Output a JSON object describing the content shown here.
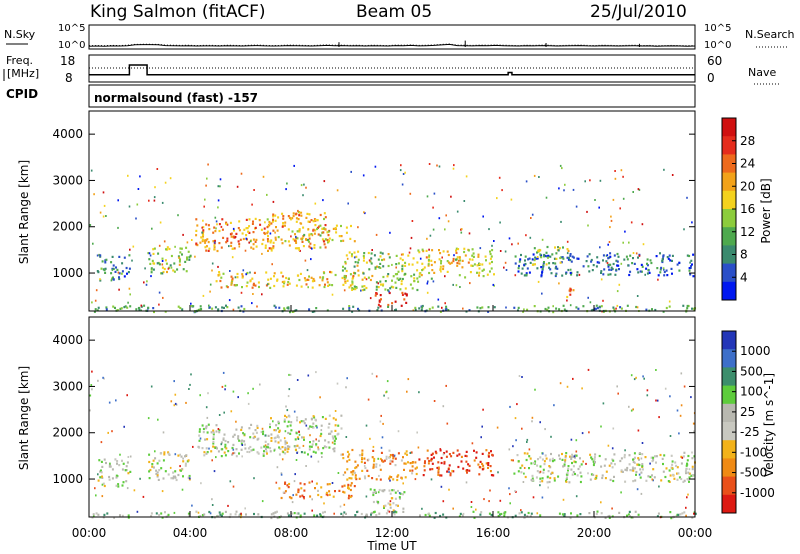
{
  "header": {
    "station": "King Salmon (fitACF)",
    "beam": "Beam 05",
    "date": "25/Jul/2010"
  },
  "colors": {
    "power_scale": [
      "#0018f0",
      "#2a4fc8",
      "#3a8a6e",
      "#4ea94e",
      "#8ccc3c",
      "#f4d21e",
      "#f2a21a",
      "#ee6a1c",
      "#e52c1c",
      "#d01010"
    ],
    "velocity_scale": [
      "#2336b8",
      "#3d6fc9",
      "#3c8e6c",
      "#5ecc3c",
      "#b8b8b0",
      "#c8c8c0",
      "#f2b21a",
      "#ef8a14",
      "#e9501a",
      "#dd1a12"
    ],
    "ground_scatter": "#c0c0b8"
  },
  "chart_data": [
    {
      "type": "line",
      "id": "nsky-nsearch",
      "left_labels": [
        "N.Sky"
      ],
      "right_labels": [
        "N.Search"
      ],
      "y_ticks_left": [
        "10^5",
        "10^0"
      ],
      "y_ticks_right": [
        "10^5",
        "10^0"
      ],
      "series": [
        {
          "style": "solid",
          "values": [
            0.5,
            0.6,
            0.5,
            0.7,
            0.6,
            0.8,
            1.4,
            1.5,
            1.5,
            1.4,
            0.9,
            0.8,
            0.7,
            0.8,
            0.6,
            0.7,
            0.7,
            0.6,
            0.8,
            0.7,
            0.6,
            0.8,
            0.9,
            0.7,
            0.6,
            0.7,
            0.9,
            0.8,
            0.7,
            0.6,
            0.8,
            1.0,
            0.8,
            0.9,
            0.7,
            0.8,
            0.6,
            0.8,
            0.7,
            0.6,
            0.9,
            0.8,
            1.0,
            0.7,
            0.8,
            1.0,
            1.3,
            1.6,
            0.9,
            0.8,
            0.7,
            0.9,
            0.8,
            1.0,
            0.8,
            0.7,
            0.6,
            0.8,
            0.7,
            0.9,
            0.8,
            0.6,
            0.7,
            0.8,
            0.9,
            0.7,
            0.6,
            0.8,
            0.7,
            0.6,
            0.7,
            0.8,
            0.6,
            0.7,
            0.5,
            0.6,
            0.7,
            0.6,
            0.5,
            0.6
          ]
        },
        {
          "style": "dotted",
          "values": [
            0.8,
            0.9,
            0.8,
            1.0,
            0.9,
            1.1,
            1.6,
            1.7,
            1.7,
            1.6,
            1.2,
            1.1,
            1.0,
            1.1,
            0.9,
            1.0,
            1.0,
            0.9,
            1.1,
            1.0,
            0.9,
            1.1,
            1.2,
            1.0,
            0.9,
            1.0,
            1.2,
            1.1,
            1.0,
            0.9,
            1.1,
            1.3,
            1.1,
            1.2,
            1.0,
            1.1,
            0.9,
            1.1,
            1.0,
            0.9,
            1.2,
            1.1,
            1.3,
            1.0,
            1.1,
            1.3,
            1.6,
            1.9,
            1.2,
            1.1,
            1.0,
            1.2,
            1.1,
            1.3,
            1.1,
            1.0,
            0.9,
            1.1,
            1.0,
            1.2,
            1.1,
            0.9,
            1.0,
            1.1,
            1.2,
            1.0,
            0.9,
            1.1,
            1.0,
            0.9,
            1.0,
            1.1,
            0.9,
            1.0,
            0.8,
            0.9,
            1.0,
            0.9,
            0.8,
            0.9
          ]
        }
      ],
      "spikes": [
        [
          9.9,
          3.0
        ],
        [
          14.9,
          4.0
        ],
        [
          18.1,
          2.5
        ],
        [
          21.8,
          2.0
        ]
      ]
    },
    {
      "type": "line",
      "id": "freq-nave",
      "left_labels": [
        "Freq.",
        "[MHz]",
        "CPID"
      ],
      "right_labels": [
        "Nave"
      ],
      "y_ticks_left": [
        "18",
        "8"
      ],
      "y_ticks_right": [
        "60",
        "0"
      ],
      "freq_steps": [
        [
          0,
          1.6,
          11.5
        ],
        [
          1.6,
          2.3,
          18
        ],
        [
          2.3,
          16.6,
          11.5
        ],
        [
          16.6,
          16.75,
          13
        ],
        [
          16.75,
          24,
          11.5
        ]
      ],
      "nave_level": 22,
      "cpid_label": "normalsound (fast) -157"
    },
    {
      "type": "heatmap",
      "id": "power",
      "ylabel": "Slant Range [km]",
      "ylim": [
        180,
        4500
      ],
      "y_ticks": [
        "1000",
        "2000",
        "3000",
        "4000"
      ],
      "colorbar_label": "Power [dB]",
      "colorbar_ticks": [
        "4",
        "8",
        "12",
        "16",
        "20",
        "24",
        "28"
      ],
      "bands": [
        {
          "t0": 0.3,
          "t1": 1.6,
          "r0": 850,
          "r1": 1450,
          "val": 0.25
        },
        {
          "t0": 2.3,
          "t1": 4.0,
          "r0": 1000,
          "r1": 1600,
          "val": 0.45
        },
        {
          "t0": 4.2,
          "t1": 7.2,
          "r0": 1500,
          "r1": 2200,
          "val": 0.7
        },
        {
          "t0": 7.0,
          "t1": 9.5,
          "r0": 1550,
          "r1": 2350,
          "val": 0.65
        },
        {
          "t0": 5.0,
          "t1": 10.5,
          "r0": 700,
          "r1": 1050,
          "val": 0.6
        },
        {
          "t0": 8.0,
          "t1": 10.5,
          "r0": 1700,
          "r1": 2050,
          "val": 0.55
        },
        {
          "t0": 10.0,
          "t1": 13.0,
          "r0": 650,
          "r1": 1500,
          "val": 0.45
        },
        {
          "t0": 11.3,
          "t1": 12.6,
          "r0": 300,
          "r1": 600,
          "val": 0.9
        },
        {
          "t0": 13.0,
          "t1": 16.0,
          "r0": 900,
          "r1": 1550,
          "val": 0.55
        },
        {
          "t0": 16.8,
          "t1": 24.0,
          "r0": 950,
          "r1": 1450,
          "val": 0.2
        },
        {
          "t0": 17.5,
          "t1": 19.0,
          "r0": 1200,
          "r1": 1600,
          "val": 0.45
        },
        {
          "t0": 18.7,
          "t1": 19.3,
          "r0": 500,
          "r1": 700,
          "val": 0.7
        },
        {
          "t0": 0.0,
          "t1": 24.0,
          "r0": 180,
          "r1": 320,
          "val": 0.3
        }
      ]
    },
    {
      "type": "heatmap",
      "id": "velocity",
      "ylabel": "Slant Range [km]",
      "ylim": [
        180,
        4500
      ],
      "y_ticks": [
        "1000",
        "2000",
        "3000",
        "4000"
      ],
      "xlabel": "Time UT",
      "x_ticks": [
        "00:00",
        "04:00",
        "08:00",
        "12:00",
        "16:00",
        "20:00",
        "00:00"
      ],
      "colorbar_label": "Velocity [m s^-1]",
      "colorbar_ticks": [
        "1000",
        "500",
        "100",
        "25",
        "-25",
        "-100",
        "-500",
        "-1000"
      ],
      "bands": [
        {
          "t0": 0.3,
          "t1": 1.6,
          "r0": 850,
          "r1": 1450,
          "val": 0.5
        },
        {
          "t0": 2.3,
          "t1": 4.0,
          "r0": 1000,
          "r1": 1600,
          "val": 0.5
        },
        {
          "t0": 4.2,
          "t1": 7.2,
          "r0": 1500,
          "r1": 2200,
          "val": 0.47
        },
        {
          "t0": 7.0,
          "t1": 10.0,
          "r0": 1550,
          "r1": 2400,
          "val": 0.47
        },
        {
          "t0": 7.5,
          "t1": 10.5,
          "r0": 600,
          "r1": 950,
          "val": 0.75
        },
        {
          "t0": 10.0,
          "t1": 13.0,
          "r0": 1000,
          "r1": 1650,
          "val": 0.72
        },
        {
          "t0": 13.0,
          "t1": 16.0,
          "r0": 1100,
          "r1": 1650,
          "val": 0.88
        },
        {
          "t0": 11.0,
          "t1": 12.5,
          "r0": 300,
          "r1": 800,
          "val": 0.48
        },
        {
          "t0": 16.8,
          "t1": 24.0,
          "r0": 950,
          "r1": 1600,
          "val": 0.48
        },
        {
          "t0": 0.0,
          "t1": 24.0,
          "r0": 180,
          "r1": 320,
          "val": 0.4
        }
      ]
    }
  ]
}
